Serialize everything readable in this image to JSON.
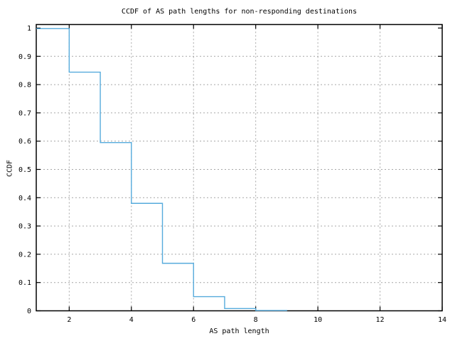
{
  "chart_data": {
    "type": "step",
    "title": "CCDF of AS path lengths for non-responding destinations",
    "xlabel": "AS path length",
    "ylabel": "CCDF",
    "x": [
      1,
      2,
      3,
      4,
      5,
      6,
      7,
      8,
      9
    ],
    "ccdf": [
      0.998,
      0.844,
      0.595,
      0.38,
      0.168,
      0.05,
      0.008,
      0.001,
      0
    ],
    "xlim": [
      0.94,
      14
    ],
    "ylim": [
      0,
      1.0125
    ],
    "xticks": [
      2,
      4,
      6,
      8,
      10,
      12,
      14
    ],
    "xtick_labels": [
      "2",
      "4",
      "6",
      "8",
      "10",
      "12",
      "14"
    ],
    "yticks": [
      0,
      0.1,
      0.2,
      0.3,
      0.4,
      0.5,
      0.6,
      0.7,
      0.8,
      0.9,
      1
    ],
    "ytick_labels": [
      "0",
      "0.1",
      "0.2",
      "0.3",
      "0.4",
      "0.5",
      "0.6",
      "0.7",
      "0.8",
      "0.9",
      "1"
    ],
    "grid": {
      "vertical_at": [
        2,
        4,
        6,
        8,
        10,
        12
      ],
      "horizontal_at": [
        0.1,
        0.2,
        0.3,
        0.4,
        0.5,
        0.6,
        0.7,
        0.8,
        0.9
      ],
      "style": "dashed"
    },
    "legend": "none",
    "colors": {
      "line": "#56abdc",
      "grid": "#a6a6a6",
      "border": "#000000",
      "text": "#000000",
      "background": "#ffffff"
    }
  }
}
